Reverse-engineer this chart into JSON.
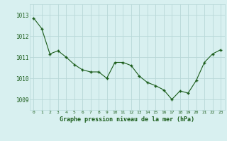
{
  "x": [
    0,
    1,
    2,
    3,
    4,
    5,
    6,
    7,
    8,
    9,
    10,
    11,
    12,
    13,
    14,
    15,
    16,
    17,
    18,
    19,
    20,
    21,
    22,
    23
  ],
  "y": [
    1012.85,
    1012.35,
    1011.15,
    1011.3,
    1011.0,
    1010.65,
    1010.4,
    1010.3,
    1010.3,
    1010.0,
    1010.75,
    1010.75,
    1010.6,
    1010.1,
    1009.8,
    1009.65,
    1009.45,
    1009.0,
    1009.4,
    1009.3,
    1009.9,
    1010.75,
    1011.15,
    1011.35
  ],
  "line_color": "#1a5c1a",
  "marker_color": "#1a5c1a",
  "bg_color": "#d8f0f0",
  "grid_color": "#b8d8d8",
  "xlabel": "Graphe pression niveau de la mer (hPa)",
  "xlabel_color": "#1a5c1a",
  "tick_color": "#1a5c1a",
  "ylim_min": 1008.5,
  "ylim_max": 1013.5,
  "ytick_values": [
    1009,
    1010,
    1011,
    1012,
    1013
  ],
  "xtick_values": [
    0,
    1,
    2,
    3,
    4,
    5,
    6,
    7,
    8,
    9,
    10,
    11,
    12,
    13,
    14,
    15,
    16,
    17,
    18,
    19,
    20,
    21,
    22,
    23
  ]
}
